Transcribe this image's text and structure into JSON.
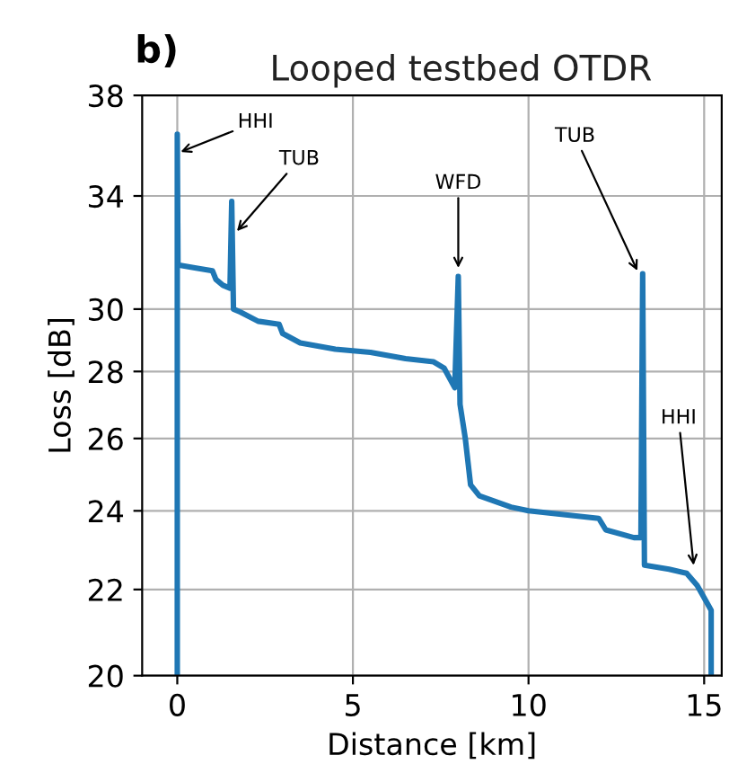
{
  "chart_data": {
    "type": "line",
    "title": "Looped testbed OTDR",
    "xlabel": "Distance [km]",
    "ylabel": "Loss [dB]",
    "annotations": [
      "b)",
      {
        "text": "HHI",
        "x": 0.1,
        "y": 35.7
      },
      {
        "text": "TUB",
        "x": 1.7,
        "y": 32.7
      },
      {
        "text": "WFD",
        "x": 8.0,
        "y": 31.4
      },
      {
        "text": "TUB",
        "x": 13.1,
        "y": 31.3
      },
      {
        "text": "HHI",
        "x": 14.7,
        "y": 22.6
      }
    ],
    "series": [
      {
        "color": "#1f77b4",
        "x": [
          0,
          0,
          0.02,
          0.5,
          1.0,
          1.1,
          1.3,
          1.5,
          1.55,
          1.6,
          1.8,
          2.3,
          2.9,
          3.0,
          3.5,
          4.5,
          5.5,
          6.5,
          7.3,
          7.6,
          7.9,
          8.0,
          8.05,
          8.2,
          8.35,
          8.6,
          9.5,
          10,
          11,
          12,
          12.2,
          13.0,
          13.2,
          13.25,
          13.3,
          14,
          14.5,
          14.8,
          15.0,
          15.2,
          15.2
        ],
        "values": [
          20,
          36.4,
          31.5,
          31.4,
          31.3,
          31.0,
          30.8,
          30.7,
          33.8,
          30.0,
          29.9,
          29.6,
          29.5,
          29.2,
          28.9,
          28.7,
          28.6,
          28.4,
          28.3,
          28.1,
          27.5,
          31.1,
          27.0,
          26.0,
          24.7,
          24.4,
          24.1,
          24.0,
          23.9,
          23.8,
          23.5,
          23.3,
          23.3,
          31.2,
          22.6,
          22.5,
          22.4,
          22.1,
          21.8,
          21.5,
          20
        ]
      }
    ],
    "log": "y",
    "xlim": [
      -1,
      15.5
    ],
    "ylim": [
      20,
      38
    ],
    "xticks": [
      0,
      5,
      10,
      15
    ],
    "yticks": [
      20,
      22,
      24,
      26,
      28,
      30,
      34,
      38
    ],
    "grid": true
  }
}
